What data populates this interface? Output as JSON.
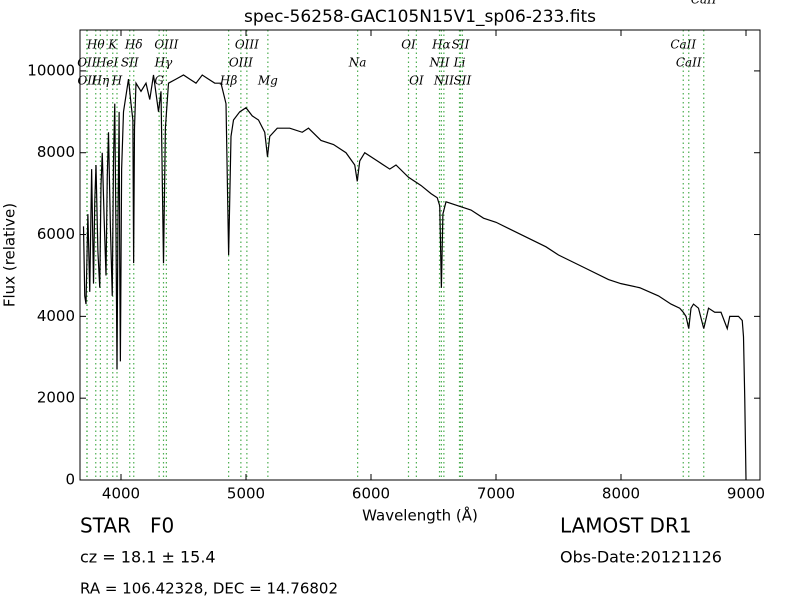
{
  "chart_data": {
    "type": "line",
    "title": "spec-56258-GAC105N15V1_sp06-233.fits",
    "xlabel": "Wavelength (Å)",
    "ylabel": "Flux (relative)",
    "color": "#000000",
    "x": [
      3700,
      3710,
      3720,
      3735,
      3750,
      3765,
      3780,
      3790,
      3800,
      3815,
      3830,
      3840,
      3850,
      3865,
      3880,
      3890,
      3900,
      3915,
      3930,
      3940,
      3950,
      3960,
      3968,
      3976,
      3985,
      3990,
      3995,
      4005,
      4020,
      4040,
      4060,
      4080,
      4095,
      4101,
      4108,
      4120,
      4160,
      4200,
      4230,
      4260,
      4300,
      4320,
      4340,
      4355,
      4380,
      4440,
      4500,
      4550,
      4600,
      4650,
      4700,
      4750,
      4800,
      4840,
      4861,
      4880,
      4900,
      4950,
      5000,
      5050,
      5100,
      5150,
      5172,
      5190,
      5250,
      5350,
      5450,
      5500,
      5600,
      5700,
      5800,
      5870,
      5890,
      5910,
      5950,
      6050,
      6150,
      6200,
      6300,
      6400,
      6480,
      6530,
      6550,
      6563,
      6575,
      6600,
      6700,
      6800,
      6900,
      7000,
      7200,
      7400,
      7500,
      7700,
      7900,
      8000,
      8150,
      8300,
      8400,
      8470,
      8498,
      8520,
      8542,
      8560,
      8580,
      8620,
      8662,
      8700,
      8750,
      8800,
      8850,
      8870,
      8900,
      8940,
      8970,
      8980,
      8990,
      9000
    ],
    "values": [
      6200,
      4500,
      4300,
      6500,
      4600,
      7600,
      4800,
      6800,
      7700,
      5600,
      4700,
      7200,
      8000,
      6400,
      5000,
      7400,
      8500,
      6200,
      4500,
      7800,
      9200,
      6000,
      2700,
      6500,
      9000,
      5200,
      2900,
      7600,
      9000,
      9400,
      9800,
      9200,
      8800,
      5300,
      8600,
      9700,
      9500,
      9700,
      9300,
      9900,
      9000,
      9500,
      5300,
      8600,
      9700,
      9800,
      9900,
      9800,
      9700,
      9900,
      9800,
      9700,
      9700,
      9200,
      5500,
      8400,
      8800,
      9000,
      9100,
      8900,
      8800,
      8500,
      7900,
      8400,
      8600,
      8600,
      8500,
      8600,
      8300,
      8200,
      8000,
      7700,
      7300,
      7800,
      8000,
      7800,
      7600,
      7700,
      7400,
      7200,
      7000,
      6900,
      6700,
      4700,
      6500,
      6800,
      6700,
      6600,
      6400,
      6300,
      6000,
      5700,
      5500,
      5200,
      4900,
      4800,
      4700,
      4500,
      4300,
      4200,
      4100,
      4000,
      3700,
      4200,
      4300,
      4200,
      3700,
      4200,
      4100,
      4100,
      3700,
      4000,
      4000,
      4000,
      3900,
      3500,
      2000,
      0
    ],
    "xlim": [
      3672,
      9112
    ],
    "ylim": [
      0,
      11000
    ],
    "xticks": [
      4000,
      5000,
      6000,
      7000,
      8000,
      9000
    ],
    "yticks": [
      0,
      2000,
      4000,
      6000,
      8000,
      10000
    ],
    "line_color": "#4caf50",
    "lines": [
      {
        "label": "Hθ",
        "wavelength": 3798
      },
      {
        "label": "K",
        "wavelength": 3934
      },
      {
        "label": "Hδ",
        "wavelength": 4102
      },
      {
        "label": "OIII",
        "wavelength": 4363
      },
      {
        "label": "OIII",
        "wavelength": 5007
      },
      {
        "label": "OI",
        "wavelength": 6300
      },
      {
        "label": "Hα",
        "wavelength": 6563
      },
      {
        "label": "SII",
        "wavelength": 6716
      },
      {
        "label": "CaII",
        "wavelength": 8498
      },
      {
        "label": "OII",
        "wavelength": 3727
      },
      {
        "label": "HeI",
        "wavelength": 3889
      },
      {
        "label": "SII",
        "wavelength": 4070
      },
      {
        "label": "Hγ",
        "wavelength": 4340
      },
      {
        "label": "OIII",
        "wavelength": 4959
      },
      {
        "label": "Na",
        "wavelength": 5893
      },
      {
        "label": "NII",
        "wavelength": 6548
      },
      {
        "label": "Li",
        "wavelength": 6708
      },
      {
        "label": "CaII",
        "wavelength": 8542
      },
      {
        "label": "OII",
        "wavelength": 3729
      },
      {
        "label": "Hη",
        "wavelength": 3835
      },
      {
        "label": "H",
        "wavelength": 3968
      },
      {
        "label": "G",
        "wavelength": 4305
      },
      {
        "label": "Hβ",
        "wavelength": 4861
      },
      {
        "label": "Mg",
        "wavelength": 5175
      },
      {
        "label": "OI",
        "wavelength": 6363
      },
      {
        "label": "NII",
        "wavelength": 6583
      },
      {
        "label": "SII",
        "wavelength": 6731
      },
      {
        "label": "CaII",
        "wavelength": 8662
      }
    ],
    "annotations": [
      "STAR   F0",
      "cz = 18.1 ± 15.4",
      "RA = 106.42328, DEC = 14.76802",
      "LAMOST DR1",
      "Obs-Date:20121126"
    ]
  }
}
